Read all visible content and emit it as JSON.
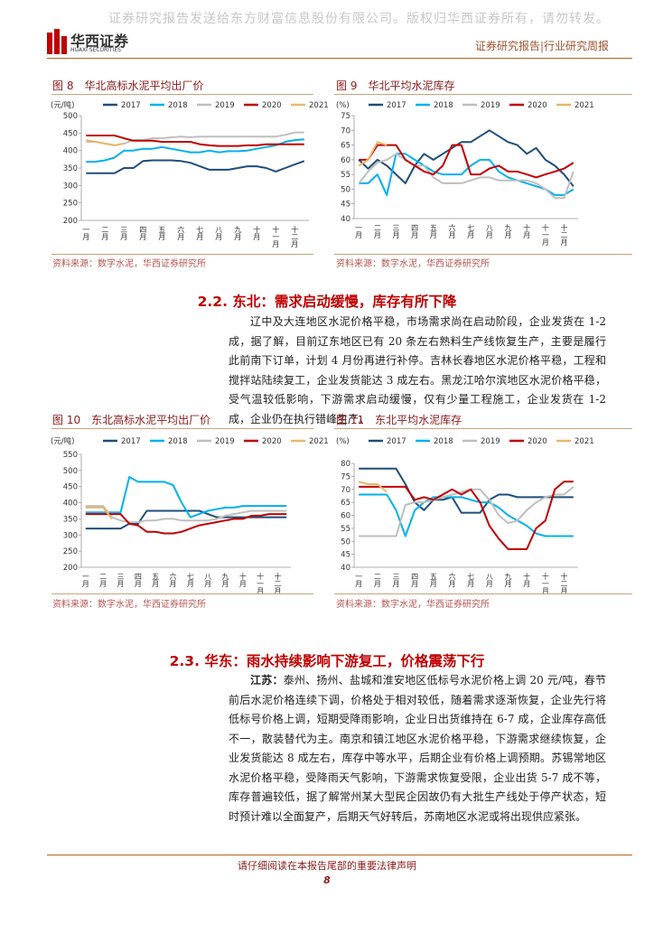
{
  "document": {
    "watermark": "证券研究报告发送给东方财富信息股份有限公司。版权归华西证券所有，请勿转发。",
    "logo_name": "华西证券",
    "logo_sub": "HUAXI SECURITIES",
    "header_right": "证券研究报告|行业研究周报",
    "section_22": "2.2. 东北：需求启动缓慢，库存有所下降",
    "para_22": "辽中及大连地区水泥价格平稳，市场需求尚在启动阶段，企业发货在 1-2 成，据了解，目前辽东地区已有 20 条左右熟料生产线恢复生产，主要是履行此前南下订单，计划 4 月份再进行补停。吉林长春地区水泥价格平稳，工程和搅拌站陆续复工，企业发货能达 3 成左右。黑龙江哈尔滨地区水泥价格平稳，受气温较低影响，下游需求启动缓慢，仅有少量工程施工，企业发货在 1-2 成，企业仍在执行错峰生产。",
    "section_23": "2.3. 华东：雨水持续影响下游复工，价格震荡下行",
    "para_23_lead": "江苏：",
    "para_23": "泰州、扬州、盐城和淮安地区低标号水泥价格上调 20 元/吨，春节前后水泥价格连续下调，价格处于相对较低，随着需求逐渐恢复，企业先行将低标号价格上调，短期受降雨影响，企业日出货维持在 6-7 成，企业库存高低不一，散装替代为主。南京和镇江地区水泥价格平稳，下游需求继续恢复，企业发货能达 8 成左右，库存中等水平，后期企业有价格上调预期。苏锡常地区水泥价格平稳，受降雨天气影响，下游需求恢复受限，企业出货 5-7 成不等，库存普遍较低，据了解常州某大型民企因故仍有大批生产线处于停产状态，短时预计难以全面复产，后期天气好转后，苏南地区水泥或将出现供应紧张。",
    "footer": "请仔细阅读在本报告尾部的重要法律声明",
    "page_number": "8"
  },
  "chart_data": [
    {
      "type": "line",
      "title": "图 8　华北高标水泥平均出厂价",
      "y_label": "(元/吨)",
      "source": "资料来源：数字水泥，华西证券研究所",
      "categories": [
        "一月",
        null,
        "二月",
        null,
        "三月",
        null,
        "四月",
        null,
        "五月",
        null,
        "六月",
        null,
        "七月",
        null,
        "八月",
        null,
        "九月",
        null,
        "十月",
        null,
        "十一月",
        null,
        "十二月",
        null
      ],
      "ylim": [
        200,
        500
      ],
      "yticks": [
        200,
        250,
        300,
        350,
        400,
        450,
        500
      ],
      "series": [
        {
          "name": "2017",
          "color": "#1f4e79",
          "values": [
            335,
            335,
            335,
            335,
            350,
            350,
            370,
            372,
            372,
            372,
            370,
            365,
            355,
            345,
            345,
            345,
            350,
            355,
            355,
            350,
            340,
            350,
            360,
            370
          ]
        },
        {
          "name": "2018",
          "color": "#00b0f0",
          "values": [
            368,
            368,
            372,
            380,
            400,
            400,
            405,
            405,
            410,
            405,
            400,
            395,
            395,
            400,
            395,
            398,
            398,
            400,
            405,
            410,
            415,
            425,
            430,
            432
          ]
        },
        {
          "name": "2019",
          "color": "#bfbfbf",
          "values": [
            425,
            425,
            420,
            415,
            420,
            430,
            430,
            435,
            435,
            438,
            440,
            438,
            440,
            440,
            440,
            440,
            440,
            440,
            440,
            440,
            440,
            445,
            452,
            452
          ]
        },
        {
          "name": "2020",
          "color": "#c00000",
          "values": [
            443,
            443,
            443,
            443,
            435,
            428,
            428,
            428,
            425,
            425,
            425,
            425,
            418,
            415,
            413,
            413,
            413,
            415,
            415,
            418,
            418,
            418,
            418,
            418
          ]
        },
        {
          "name": "2021",
          "color": "#e8b86a",
          "values": [
            430,
            425,
            420,
            415,
            420,
            null,
            null,
            null,
            null,
            null,
            null,
            null,
            null,
            null,
            null,
            null,
            null,
            null,
            null,
            null,
            null,
            null,
            null,
            null
          ]
        }
      ]
    },
    {
      "type": "line",
      "title": "图 9　华北平均水泥库存",
      "y_label": "(%)",
      "source": "资料来源：数字水泥，华西证券研究所",
      "categories": [
        "一月",
        null,
        "二月",
        null,
        "三月",
        null,
        "四月",
        null,
        "五月",
        null,
        "六月",
        null,
        "七月",
        null,
        "八月",
        null,
        "九月",
        null,
        "十月",
        null,
        "十一月",
        null,
        "十二月",
        null
      ],
      "ylim": [
        40,
        75
      ],
      "yticks": [
        40,
        45,
        50,
        55,
        60,
        65,
        70,
        75
      ],
      "series": [
        {
          "name": "2017",
          "color": "#1f4e79",
          "values": [
            60,
            57,
            60,
            58,
            55,
            52,
            58,
            62,
            60,
            62,
            64,
            66,
            66,
            68,
            70,
            68,
            66,
            65,
            62,
            64,
            60,
            58,
            55,
            51
          ]
        },
        {
          "name": "2018",
          "color": "#00b0f0",
          "values": [
            52,
            52,
            55,
            48,
            62,
            62,
            60,
            58,
            56,
            55,
            55,
            55,
            58,
            60,
            60,
            56,
            54,
            53,
            52,
            51,
            50,
            48,
            48,
            50
          ]
        },
        {
          "name": "2019",
          "color": "#bfbfbf",
          "values": [
            52,
            56,
            59,
            60,
            62,
            60,
            58,
            58,
            54,
            52,
            52,
            52,
            53,
            54,
            54,
            53,
            53,
            53,
            53,
            52,
            50,
            47,
            47,
            56
          ]
        },
        {
          "name": "2020",
          "color": "#c00000",
          "values": [
            60,
            60,
            65,
            65,
            65,
            60,
            58,
            56,
            55,
            58,
            65,
            65,
            55,
            55,
            57,
            58,
            56,
            56,
            55,
            54,
            55,
            56,
            57,
            59
          ]
        },
        {
          "name": "2021",
          "color": "#e8b86a",
          "values": [
            58,
            60,
            66,
            65,
            null,
            null,
            null,
            null,
            null,
            null,
            null,
            null,
            null,
            null,
            null,
            null,
            null,
            null,
            null,
            null,
            null,
            null,
            null,
            null
          ]
        }
      ]
    },
    {
      "type": "line",
      "title": "图 10　东北高标水泥平均出厂价",
      "y_label": "(元/吨)",
      "source": "资料来源：数字水泥，华西证券研究所",
      "categories": [
        "一月",
        null,
        "二月",
        null,
        "三月",
        null,
        "四月",
        null,
        "五月",
        null,
        "六月",
        null,
        "七月",
        null,
        "八月",
        null,
        "九月",
        null,
        "十月",
        null,
        "十一月",
        null,
        "十二月",
        null
      ],
      "ylim": [
        200,
        550
      ],
      "yticks": [
        200,
        250,
        300,
        350,
        400,
        450,
        500,
        550
      ],
      "series": [
        {
          "name": "2017",
          "color": "#1f4e79",
          "values": [
            320,
            320,
            320,
            320,
            320,
            335,
            335,
            375,
            375,
            375,
            375,
            375,
            375,
            375,
            365,
            355,
            355,
            355,
            355,
            355,
            355,
            355,
            355,
            355
          ]
        },
        {
          "name": "2018",
          "color": "#00b0f0",
          "values": [
            370,
            370,
            370,
            370,
            370,
            480,
            465,
            465,
            465,
            465,
            455,
            400,
            355,
            365,
            375,
            380,
            385,
            385,
            390,
            390,
            390,
            390,
            390,
            390
          ]
        },
        {
          "name": "2019",
          "color": "#bfbfbf",
          "values": [
            390,
            390,
            390,
            355,
            345,
            340,
            340,
            345,
            345,
            350,
            350,
            345,
            345,
            345,
            345,
            350,
            360,
            365,
            370,
            375,
            375,
            375,
            375,
            375
          ]
        },
        {
          "name": "2020",
          "color": "#c00000",
          "values": [
            365,
            365,
            365,
            365,
            365,
            335,
            330,
            310,
            310,
            305,
            305,
            310,
            320,
            330,
            335,
            340,
            345,
            350,
            350,
            360,
            360,
            365,
            365,
            365
          ]
        },
        {
          "name": "2021",
          "color": "#e8b86a",
          "values": [
            385,
            385,
            385,
            350,
            null,
            null,
            null,
            null,
            null,
            null,
            null,
            null,
            null,
            null,
            null,
            null,
            null,
            null,
            null,
            null,
            null,
            null,
            null,
            null
          ]
        }
      ]
    },
    {
      "type": "line",
      "title": "图 11　东北平均水泥库存",
      "y_label": "(%)",
      "source": "资料来源：数字水泥，华西证券研究所",
      "categories": [
        "一月",
        null,
        "二月",
        null,
        "三月",
        null,
        "四月",
        null,
        "五月",
        null,
        "六月",
        null,
        "七月",
        null,
        "八月",
        null,
        "九月",
        null,
        "十月",
        null,
        "十一月",
        null,
        "十二月",
        null
      ],
      "ylim": [
        40,
        80
      ],
      "yticks": [
        40,
        45,
        50,
        55,
        60,
        65,
        70,
        75,
        80
      ],
      "series": [
        {
          "name": "2017",
          "color": "#1f4e79",
          "values": [
            78,
            78,
            78,
            78,
            78,
            72,
            65,
            62,
            66,
            66,
            67,
            61,
            61,
            61,
            66,
            68,
            68,
            67,
            67,
            67,
            67,
            67,
            67,
            67
          ]
        },
        {
          "name": "2018",
          "color": "#00b0f0",
          "values": [
            68,
            68,
            68,
            68,
            62,
            52,
            62,
            65,
            67,
            67,
            67,
            67,
            66,
            65,
            65,
            63,
            60,
            58,
            56,
            53,
            52,
            52,
            52,
            52
          ]
        },
        {
          "name": "2019",
          "color": "#bfbfbf",
          "values": [
            52,
            52,
            52,
            52,
            52,
            64,
            65,
            65,
            66,
            67,
            68,
            69,
            70,
            70,
            66,
            60,
            57,
            58,
            62,
            65,
            67,
            68,
            68,
            71
          ]
        },
        {
          "name": "2020",
          "color": "#c00000",
          "values": [
            71,
            71,
            71,
            71,
            71,
            71,
            66,
            67,
            66,
            68,
            70,
            68,
            70,
            65,
            56,
            51,
            47,
            47,
            47,
            55,
            58,
            70,
            73,
            73
          ]
        },
        {
          "name": "2021",
          "color": "#e8b86a",
          "values": [
            73,
            72,
            72,
            69,
            null,
            null,
            null,
            null,
            null,
            null,
            null,
            null,
            null,
            null,
            null,
            null,
            null,
            null,
            null,
            null,
            null,
            null,
            null,
            null
          ]
        }
      ]
    }
  ]
}
